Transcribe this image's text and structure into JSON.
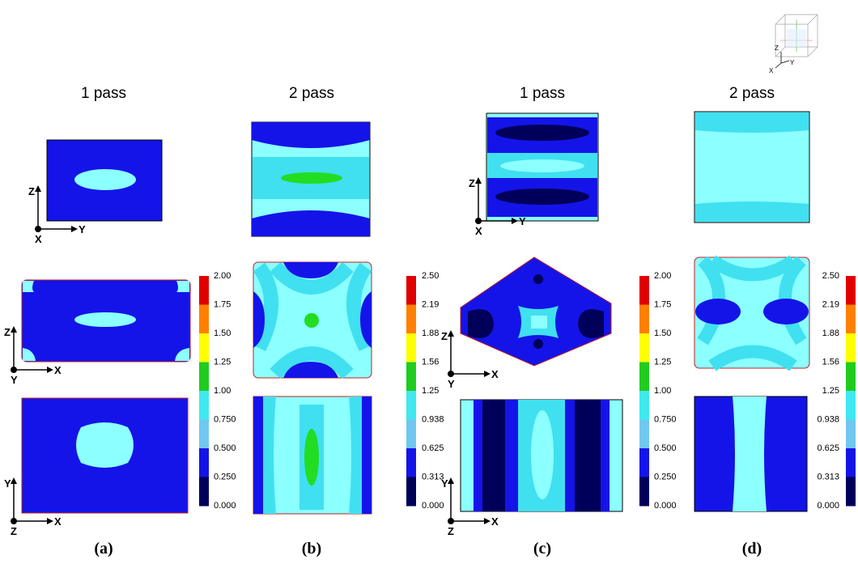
{
  "columns": [
    {
      "header": "1 pass",
      "label": "(a)"
    },
    {
      "header": "2 pass",
      "label": "(b)"
    },
    {
      "header": "1 pass",
      "label": "(c)"
    },
    {
      "header": "2 pass",
      "label": "(d)"
    }
  ],
  "triads": [
    {
      "up": "Z",
      "origin": "X",
      "right": "Y"
    },
    {
      "up": "Z",
      "origin": "Y",
      "right": "X"
    },
    {
      "up": "Y",
      "origin": "Z",
      "right": "X"
    },
    {
      "up": "Z",
      "origin": "X",
      "right": "Y"
    },
    {
      "up": "Z",
      "origin": "Y",
      "right": "X"
    },
    {
      "up": "Y",
      "origin": "Z",
      "right": "X"
    }
  ],
  "icon_axes": {
    "up": "Z",
    "left": "X",
    "right": "Y"
  },
  "colorbars": [
    {
      "ticks": [
        "2.00",
        "1.75",
        "1.50",
        "1.25",
        "1.00",
        "0.750",
        "0.500",
        "0.250",
        "0.000"
      ]
    },
    {
      "ticks": [
        "2.50",
        "2.19",
        "1.88",
        "1.56",
        "1.25",
        "0.938",
        "0.625",
        "0.313",
        "0.000"
      ]
    },
    {
      "ticks": [
        "2.00",
        "1.75",
        "1.50",
        "1.25",
        "1.00",
        "0.750",
        "0.500",
        "0.250",
        "0.000"
      ]
    },
    {
      "ticks": [
        "2.50",
        "2.19",
        "1.88",
        "1.56",
        "1.25",
        "0.938",
        "0.625",
        "0.313",
        "0.000"
      ]
    }
  ]
}
